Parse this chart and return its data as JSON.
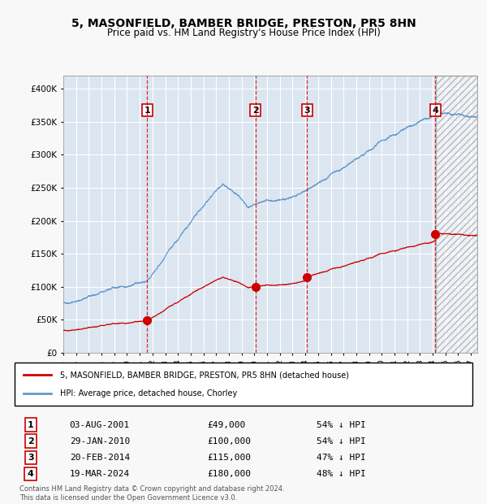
{
  "title": "5, MASONFIELD, BAMBER BRIDGE, PRESTON, PR5 8HN",
  "subtitle": "Price paid vs. HM Land Registry's House Price Index (HPI)",
  "legend_property": "5, MASONFIELD, BAMBER BRIDGE, PRESTON, PR5 8HN (detached house)",
  "legend_hpi": "HPI: Average price, detached house, Chorley",
  "footnote1": "Contains HM Land Registry data © Crown copyright and database right 2024.",
  "footnote2": "This data is licensed under the Open Government Licence v3.0.",
  "sales": [
    {
      "num": 1,
      "date_label": "03-AUG-2001",
      "date_year": 2001.58,
      "price": 49000,
      "pct": "54% ↓ HPI"
    },
    {
      "num": 2,
      "date_label": "29-JAN-2010",
      "date_year": 2010.08,
      "price": 100000,
      "pct": "54% ↓ HPI"
    },
    {
      "num": 3,
      "date_label": "20-FEB-2014",
      "date_year": 2014.13,
      "price": 115000,
      "pct": "47% ↓ HPI"
    },
    {
      "num": 4,
      "date_label": "19-MAR-2024",
      "date_year": 2024.21,
      "price": 180000,
      "pct": "48% ↓ HPI"
    }
  ],
  "xmin": 1995.0,
  "xmax": 2027.5,
  "ymin": 0,
  "ymax": 420000,
  "future_start": 2024.25,
  "property_color": "#cc0000",
  "hpi_color": "#6699cc",
  "bg_color": "#dce6f1",
  "plot_bg": "#dce6f1",
  "grid_color": "#ffffff",
  "sale_marker_color": "#cc0000",
  "vline_color": "#cc0000",
  "box_color": "#cc0000"
}
